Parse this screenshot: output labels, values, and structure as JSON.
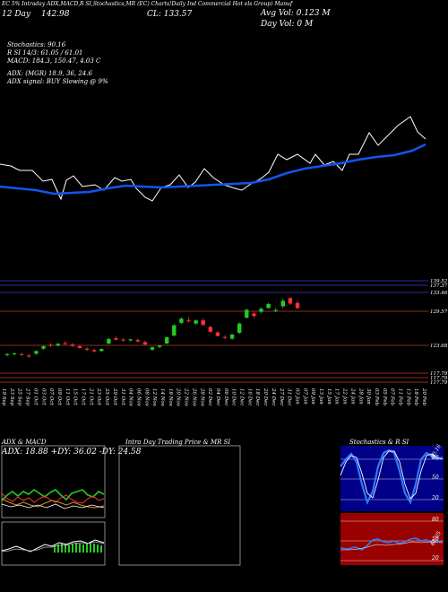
{
  "header": {
    "top_line": "EC 5%  Intraday ADX,MACD,R    SI,Stochastics,MR      (EC)  Charts!Daily    Ind    Commercial Hot    els Group) Manuf",
    "date": "12  Day",
    "price": "142.98",
    "cl": "CL: 133.57",
    "avg_vol": "Avg Vol: 0.123  M",
    "day_vol": "Day Vol: 0   M"
  },
  "indicators": {
    "stochastics": "Stochastics: 90.16",
    "rsi": "R        SI 14/3: 61.05 / 61.01",
    "macd": "MACD: 184.3,  150.47, 4.03 C",
    "adx": "ADX:                  (MGR) 18.9,  36,  24.6",
    "adx_signal": "ADX  signal:                      BUY Slowing @ 9%"
  },
  "price_levels": [
    "139.52",
    "137.37",
    "133.46",
    "129.57",
    "123.68",
    "117.79",
    "117.79",
    "117.79"
  ],
  "x_labels": [
    "19 Sep",
    "23 Sep",
    "25 Sep",
    "27 Sep",
    "01 Oct",
    "03 Oct",
    "07 Oct",
    "09 Oct",
    "11 Oct",
    "15 Oct",
    "17 Oct",
    "21 Oct",
    "23 Oct",
    "25 Oct",
    "29 Oct",
    "31 Oct",
    "04 Nov",
    "06 Nov",
    "08 Nov",
    "12 Nov",
    "14 Nov",
    "18 Nov",
    "20 Nov",
    "22 Nov",
    "26 Nov",
    "28 Nov",
    "02 Dec",
    "04 Dec",
    "06 Dec",
    "10 Dec",
    "12 Dec",
    "16 Dec",
    "18 Dec",
    "20 Dec",
    "24 Dec",
    "27 Dec",
    "31 Dec",
    "03 Jan",
    "07 Jan",
    "09 Jan",
    "13 Jan",
    "15 Jan",
    "17 Jan",
    "22 Jan",
    "24 Jan",
    "28 Jan",
    "30 Jan",
    "03 Feb",
    "05 Feb",
    "07 Feb",
    "11 Feb",
    "13 Feb",
    "18 Feb",
    "20 Feb"
  ],
  "panels": {
    "adx_title": "ADX  & MACD",
    "adx_values": "ADX: 18.88  +DY: 36.02  -DY: 24.58",
    "mr_title": "Intra  Day Trading Price  & MR                SI",
    "stoch_title": "Stochastics & R                SI",
    "stoch_levels": [
      "80",
      "50",
      "20"
    ],
    "rsi_levels": [
      "80",
      "50",
      "20"
    ],
    "stoch_value": "90.16",
    "rsi_value": "61.05"
  },
  "colors": {
    "up": "#22cc22",
    "down": "#ff3333",
    "ma": "#1155ee",
    "bg": "#000000",
    "rsi_bg": "#990000",
    "stoch_bg": "#000088"
  },
  "chart_data": {
    "type": "candlestick",
    "title": "",
    "ylim": [
      116.5,
      140.5
    ],
    "candles": [
      {
        "o": 118.6,
        "h": 119.2,
        "l": 118.2,
        "c": 118.9
      },
      {
        "o": 118.9,
        "h": 119.5,
        "l": 118.5,
        "c": 119.1
      },
      {
        "o": 118.9,
        "h": 119.3,
        "l": 118.4,
        "c": 118.7
      },
      {
        "o": 118.5,
        "h": 118.9,
        "l": 117.9,
        "c": 118.2
      },
      {
        "o": 119.0,
        "h": 120.0,
        "l": 118.7,
        "c": 119.8
      },
      {
        "o": 120.5,
        "h": 121.5,
        "l": 120.1,
        "c": 121.2
      },
      {
        "o": 121.6,
        "h": 122.1,
        "l": 121.0,
        "c": 121.3
      },
      {
        "o": 121.4,
        "h": 122.2,
        "l": 121.1,
        "c": 121.9
      },
      {
        "o": 122.1,
        "h": 122.7,
        "l": 121.6,
        "c": 121.9
      },
      {
        "o": 121.7,
        "h": 122.2,
        "l": 121.0,
        "c": 121.3
      },
      {
        "o": 121.2,
        "h": 121.6,
        "l": 120.5,
        "c": 120.7
      },
      {
        "o": 120.5,
        "h": 120.9,
        "l": 119.8,
        "c": 120.2
      },
      {
        "o": 120.1,
        "h": 120.5,
        "l": 119.4,
        "c": 119.7
      },
      {
        "o": 119.8,
        "h": 120.6,
        "l": 119.5,
        "c": 120.4
      },
      {
        "o": 122.0,
        "h": 123.7,
        "l": 121.7,
        "c": 123.3
      },
      {
        "o": 123.5,
        "h": 124.1,
        "l": 122.9,
        "c": 123.1
      },
      {
        "o": 123.1,
        "h": 123.6,
        "l": 122.6,
        "c": 122.9
      },
      {
        "o": 122.9,
        "h": 123.4,
        "l": 122.5,
        "c": 123.2
      },
      {
        "o": 123.0,
        "h": 123.4,
        "l": 122.3,
        "c": 122.6
      },
      {
        "o": 122.4,
        "h": 122.8,
        "l": 121.4,
        "c": 121.7
      },
      {
        "o": 120.2,
        "h": 121.1,
        "l": 119.9,
        "c": 120.9
      },
      {
        "o": 121.0,
        "h": 121.6,
        "l": 120.6,
        "c": 121.4
      },
      {
        "o": 122.0,
        "h": 124.0,
        "l": 121.8,
        "c": 123.8
      },
      {
        "o": 124.3,
        "h": 127.7,
        "l": 124.0,
        "c": 127.3
      },
      {
        "o": 128.0,
        "h": 129.6,
        "l": 127.7,
        "c": 129.2
      },
      {
        "o": 128.7,
        "h": 129.6,
        "l": 128.1,
        "c": 128.6
      },
      {
        "o": 127.8,
        "h": 129.0,
        "l": 127.4,
        "c": 128.7
      },
      {
        "o": 128.7,
        "h": 129.3,
        "l": 127.1,
        "c": 127.4
      },
      {
        "o": 126.8,
        "h": 127.2,
        "l": 125.1,
        "c": 125.4
      },
      {
        "o": 125.2,
        "h": 125.6,
        "l": 124.0,
        "c": 124.2
      },
      {
        "o": 123.9,
        "h": 124.4,
        "l": 123.3,
        "c": 123.6
      },
      {
        "o": 123.4,
        "h": 124.8,
        "l": 123.1,
        "c": 124.6
      },
      {
        "o": 125.1,
        "h": 128.1,
        "l": 124.8,
        "c": 127.8
      },
      {
        "o": 129.5,
        "h": 132.2,
        "l": 129.2,
        "c": 131.8
      },
      {
        "o": 130.7,
        "h": 131.2,
        "l": 129.4,
        "c": 130.0
      },
      {
        "o": 131.2,
        "h": 132.5,
        "l": 130.8,
        "c": 132.1
      },
      {
        "o": 132.3,
        "h": 133.8,
        "l": 132.1,
        "c": 133.5
      },
      {
        "o": 131.5,
        "h": 132.4,
        "l": 131.1,
        "c": 131.7
      },
      {
        "o": 132.8,
        "h": 135.0,
        "l": 132.3,
        "c": 134.4
      },
      {
        "o": 135.2,
        "h": 135.5,
        "l": 133.2,
        "c": 133.6
      },
      {
        "o": 133.8,
        "h": 134.5,
        "l": 132.0,
        "c": 132.3
      }
    ]
  }
}
